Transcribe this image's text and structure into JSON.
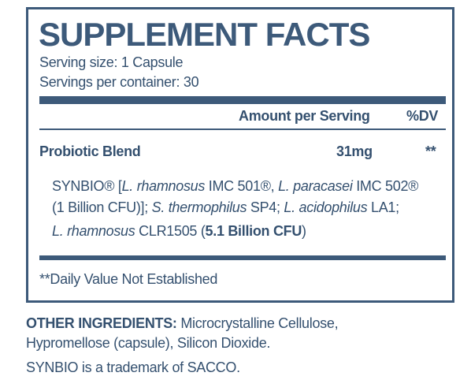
{
  "label": {
    "title": "SUPPLEMENT FACTS",
    "serving_size": "Serving size: 1 Capsule",
    "servings_per_container": "Servings per container: 30",
    "header": {
      "amount": "Amount per Serving",
      "dv": "%DV"
    },
    "blend": {
      "name": "Probiotic Blend",
      "amount": "31mg",
      "dv": "**",
      "description": [
        [
          "SYNBIO® [",
          "L. rhamnosus",
          " IMC 501®, ",
          "L. paracasei",
          " IMC 502®"
        ],
        [
          "(1 Billion CFU)]; ",
          "S. thermophilus",
          " SP4; ",
          "L. acidophilus",
          " LA1;"
        ],
        [
          "L. rhamnosus",
          " CLR1505 (",
          "5.1 Billion CFU",
          ")"
        ]
      ]
    },
    "footnote": "**Daily Value Not Established"
  },
  "other_ingredients": {
    "heading": "OTHER INGREDIENTS:",
    "text": "Microcrystalline Cellulose, Hypromellose (capsule), Silicon Dioxide."
  },
  "trademark": "SYNBIO is a trademark of SACCO."
}
